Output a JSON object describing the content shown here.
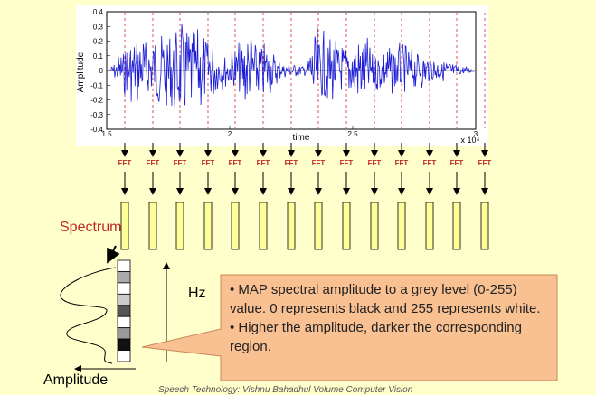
{
  "waveform": {
    "yaxis_label": "Amplitude",
    "xaxis_label": "time",
    "y_ticks": [
      "0.4",
      "0.3",
      "0.2",
      "0.1",
      "0",
      "-0.1",
      "-0.2",
      "-0.3",
      "-0.4"
    ],
    "x_ticks": [
      "1.5",
      "2",
      "2.5",
      "3"
    ],
    "x_exponent": "x 10⁴",
    "colors": {
      "signal": "#1c1cd6",
      "marker": "#d8262a"
    }
  },
  "fft_label": "FFT",
  "fft_count": 14,
  "spectrum_label": "Spectrum",
  "hz_label": "Hz",
  "amplitude_label": "Amplitude",
  "grey_cells": [
    "#ffffff",
    "#aaaaaa",
    "#ffffff",
    "#cccccc",
    "#555555",
    "#ffffff",
    "#999999",
    "#111111",
    "#ffffff"
  ],
  "note": {
    "line1": "• MAP spectral amplitude to a grey level (0-255) value. 0 represents black and 255 represents white.",
    "line2": "• Higher the amplitude, darker the corresponding region."
  },
  "caption": "Speech Technology: Vishnu Bahadhul Volume Computer Vision"
}
